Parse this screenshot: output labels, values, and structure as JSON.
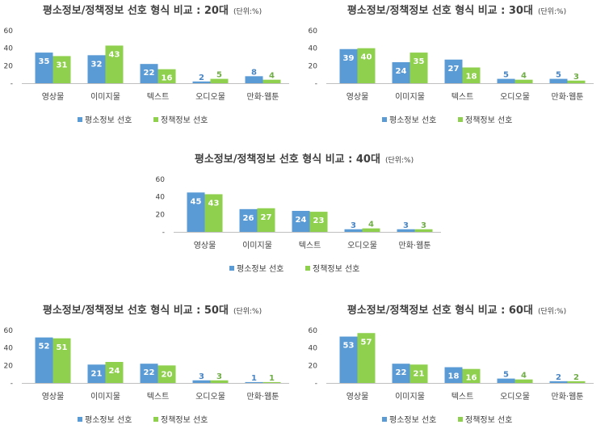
{
  "colors": {
    "series1": "#5b9bd5",
    "series2": "#8fd14f",
    "label_in": "#ffffff",
    "label_out_s1": "#4a86c5",
    "label_out_s2": "#70ad47",
    "axis": "#bfbfbf",
    "text": "#404040"
  },
  "chart_data": [
    {
      "type": "bar",
      "title": "평소정보/정책정보 선호 형식 비교 : 20대",
      "unit": "(단위:%)",
      "categories": [
        "영상물",
        "이미지물",
        "텍스트",
        "오디오물",
        "만화·웹툰"
      ],
      "series": [
        {
          "name": "평소정보 선호",
          "values": [
            35,
            32,
            22,
            2,
            8
          ]
        },
        {
          "name": "정책정보 선호",
          "values": [
            31,
            43,
            16,
            5,
            4
          ]
        }
      ],
      "ylim": [
        0,
        60
      ],
      "yticks": [
        "-",
        "20",
        "40",
        "60"
      ],
      "legend_position": "bottom"
    },
    {
      "type": "bar",
      "title": "평소정보/정책정보 선호 형식 비교 : 30대",
      "unit": "(단위:%)",
      "categories": [
        "영상물",
        "이미지물",
        "텍스트",
        "오디오물",
        "만화·웹툰"
      ],
      "series": [
        {
          "name": "평소정보 선호",
          "values": [
            39,
            24,
            27,
            5,
            5
          ]
        },
        {
          "name": "정책정보 선호",
          "values": [
            40,
            35,
            18,
            4,
            3
          ]
        }
      ],
      "ylim": [
        0,
        60
      ],
      "yticks": [
        "-",
        "20",
        "40",
        "60"
      ],
      "legend_position": "bottom"
    },
    {
      "type": "bar",
      "title": "평소정보/정책정보 선호 형식 비교 : 40대",
      "unit": "(단위:%)",
      "categories": [
        "영상물",
        "이미지물",
        "텍스트",
        "오디오물",
        "만화·웹툰"
      ],
      "series": [
        {
          "name": "평소정보 선호",
          "values": [
            45,
            26,
            24,
            3,
            3
          ]
        },
        {
          "name": "정책정보 선호",
          "values": [
            43,
            27,
            23,
            4,
            3
          ]
        }
      ],
      "ylim": [
        0,
        60
      ],
      "yticks": [
        "-",
        "20",
        "40",
        "60"
      ],
      "legend_position": "bottom"
    },
    {
      "type": "bar",
      "title": "평소정보/정책정보 선호 형식 비교 : 50대",
      "unit": "(단위:%)",
      "categories": [
        "영상물",
        "이미지물",
        "텍스트",
        "오디오물",
        "만화·웹툰"
      ],
      "series": [
        {
          "name": "평소정보 선호",
          "values": [
            52,
            21,
            22,
            3,
            1
          ]
        },
        {
          "name": "정책정보 선호",
          "values": [
            51,
            24,
            20,
            3,
            1
          ]
        }
      ],
      "ylim": [
        0,
        60
      ],
      "yticks": [
        "-",
        "20",
        "40",
        "60"
      ],
      "legend_position": "bottom"
    },
    {
      "type": "bar",
      "title": "평소정보/정책정보 선호 형식 비교 : 60대",
      "unit": "(단위:%)",
      "categories": [
        "영상물",
        "이미지물",
        "텍스트",
        "오디오물",
        "만화·웹툰"
      ],
      "series": [
        {
          "name": "평소정보 선호",
          "values": [
            53,
            22,
            18,
            5,
            2
          ]
        },
        {
          "name": "정책정보 선호",
          "values": [
            57,
            21,
            16,
            4,
            2
          ]
        }
      ],
      "ylim": [
        0,
        60
      ],
      "yticks": [
        "-",
        "20",
        "40",
        "60"
      ],
      "legend_position": "bottom"
    }
  ]
}
